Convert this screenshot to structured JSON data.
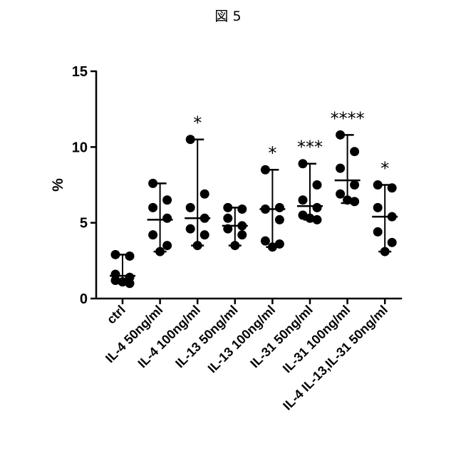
{
  "figure_title": "図 5",
  "chart_data": {
    "type": "scatter",
    "title": "",
    "xlabel": "",
    "ylabel": "%",
    "ylim": [
      0,
      15
    ],
    "yticks": [
      0,
      5,
      10,
      15
    ],
    "grid": false,
    "colors": {
      "points": "#000000",
      "axes": "#000000"
    },
    "categories": [
      "ctrl",
      "IL-4 50ng/ml",
      "IL-4 100ng/ml",
      "IL-13 50ng/ml",
      "IL-13 100ng/ml",
      "IL-31 50ng/ml",
      "IL-31 100ng/ml",
      "IL-4 IL-13,IL-31  50ng/ml"
    ],
    "groups": [
      {
        "points": [
          2.9,
          2.8,
          1.6,
          1.4,
          1.2,
          1.0,
          1.1
        ],
        "median": 1.5,
        "min": 1.0,
        "max": 2.9,
        "significance": ""
      },
      {
        "points": [
          7.6,
          6.5,
          6.0,
          5.3,
          4.2,
          3.5,
          3.1
        ],
        "median": 5.2,
        "min": 3.1,
        "max": 7.6,
        "significance": ""
      },
      {
        "points": [
          10.5,
          6.9,
          6.0,
          5.3,
          4.6,
          4.2,
          3.5
        ],
        "median": 5.3,
        "min": 3.5,
        "max": 10.5,
        "significance": "*"
      },
      {
        "points": [
          6.0,
          5.9,
          5.3,
          4.8,
          4.6,
          4.2,
          3.5
        ],
        "median": 4.8,
        "min": 3.5,
        "max": 6.0,
        "significance": ""
      },
      {
        "points": [
          8.5,
          6.0,
          5.9,
          5.2,
          3.8,
          3.6,
          3.4
        ],
        "median": 5.9,
        "min": 3.4,
        "max": 8.5,
        "significance": "*"
      },
      {
        "points": [
          8.9,
          7.5,
          6.5,
          6.0,
          5.5,
          5.2,
          5.3
        ],
        "median": 6.1,
        "min": 5.2,
        "max": 8.9,
        "significance": "***"
      },
      {
        "points": [
          10.8,
          9.7,
          8.6,
          7.5,
          6.9,
          6.4,
          6.5
        ],
        "median": 7.8,
        "min": 6.3,
        "max": 10.8,
        "significance": "****"
      },
      {
        "points": [
          7.5,
          7.3,
          6.0,
          5.4,
          4.4,
          3.7,
          3.1
        ],
        "median": 5.4,
        "min": 3.1,
        "max": 7.5,
        "significance": "*"
      }
    ]
  }
}
